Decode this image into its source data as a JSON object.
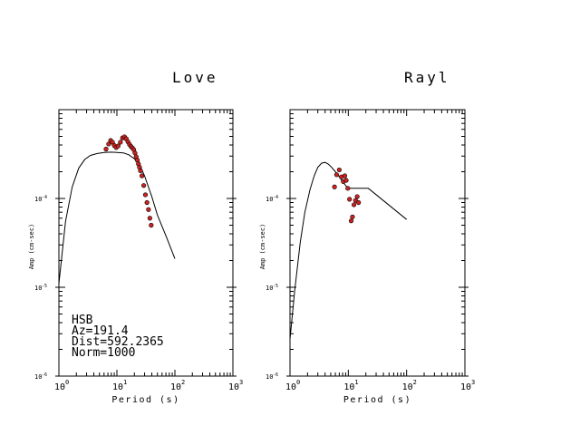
{
  "panels": [
    {
      "title": "Love",
      "xlabel": "Period (s)",
      "ylabel": "Amp (cm-sec)"
    },
    {
      "title": "Rayl",
      "xlabel": "Period (s)",
      "ylabel": "Amp (cm-sec)"
    }
  ],
  "station_info": {
    "station": "HSB",
    "az": "Az=191.4",
    "dist": "Dist=592.2365",
    "norm": "Norm=1000"
  },
  "colors": {
    "observed": "#cc2222",
    "model": "#000000",
    "axes": "#000000"
  },
  "chart_data": [
    {
      "type": "scatter",
      "title": "Love",
      "xlabel": "Period (s)",
      "ylabel": "Amp (cm-sec)",
      "xscale": "log",
      "yscale": "log",
      "xlim": [
        1,
        1000
      ],
      "ylim": [
        1e-06,
        0.001
      ],
      "x_ticks": [
        {
          "value": 1,
          "label": "10^0"
        },
        {
          "value": 10,
          "label": "10^1"
        },
        {
          "value": 100,
          "label": "10^2"
        },
        {
          "value": 1000,
          "label": "10^3"
        }
      ],
      "y_ticks": [
        {
          "value": 1e-06,
          "label": "10^-6"
        },
        {
          "value": 1e-05,
          "label": "10^-5"
        },
        {
          "value": 0.0001,
          "label": "10^-4"
        }
      ],
      "series": [
        {
          "kind": "line",
          "x": [
            1,
            1.3,
            1.7,
            2.2,
            2.8,
            3.5,
            4.5,
            6,
            8,
            10,
            13,
            16,
            20,
            25,
            30,
            40,
            50,
            70,
            100
          ],
          "y": [
            1.1e-05,
            5.5e-05,
            0.000135,
            0.00022,
            0.000275,
            0.000305,
            0.00032,
            0.00033,
            0.000332,
            0.00033,
            0.000325,
            0.00031,
            0.00028,
            0.000235,
            0.00018,
            0.000105,
            6.5e-05,
            3.8e-05,
            2.1e-05
          ]
        },
        {
          "kind": "points",
          "x": [
            6.5,
            7.2,
            7.8,
            8.4,
            9,
            9.7,
            10.5,
            11.5,
            12.5,
            13.5,
            14.5,
            15.5,
            16.5,
            17.5,
            18.5,
            19.5,
            20.5,
            21.5,
            22.5,
            23.5,
            24.5,
            25.5,
            27,
            29,
            31,
            33,
            35,
            37,
            39
          ],
          "y": [
            0.00036,
            0.00041,
            0.00045,
            0.00043,
            0.000395,
            0.000375,
            0.00039,
            0.00043,
            0.00048,
            0.000495,
            0.00047,
            0.000435,
            0.000405,
            0.000385,
            0.00037,
            0.000355,
            0.000325,
            0.000295,
            0.00027,
            0.000245,
            0.000225,
            0.000205,
            0.00018,
            0.00014,
            0.00011,
            9e-05,
            7.5e-05,
            6e-05,
            5e-05
          ]
        }
      ]
    },
    {
      "type": "scatter",
      "title": "Rayl",
      "xlabel": "Period (s)",
      "ylabel": "Amp (cm-sec)",
      "xscale": "log",
      "yscale": "log",
      "xlim": [
        1,
        1000
      ],
      "ylim": [
        1e-06,
        0.001
      ],
      "x_ticks": [
        {
          "value": 1,
          "label": "10^0"
        },
        {
          "value": 10,
          "label": "10^1"
        },
        {
          "value": 100,
          "label": "10^2"
        },
        {
          "value": 1000,
          "label": "10^3"
        }
      ],
      "y_ticks": [
        {
          "value": 1e-06,
          "label": "10^-6"
        },
        {
          "value": 1e-05,
          "label": "10^-5"
        },
        {
          "value": 0.0001,
          "label": "10^-4"
        }
      ],
      "series": [
        {
          "kind": "line",
          "x": [
            1,
            1.2,
            1.5,
            1.8,
            2.2,
            2.6,
            3,
            3.5,
            4,
            4.5,
            5,
            6,
            7,
            8,
            9,
            10,
            12,
            14,
            16,
            18,
            20,
            22,
            100
          ],
          "y": [
            2.6e-06,
            9e-06,
            3.2e-05,
            7e-05,
            0.000125,
            0.00018,
            0.000225,
            0.00025,
            0.000255,
            0.000245,
            0.00023,
            0.0002,
            0.000175,
            0.000155,
            0.00014,
            0.00013,
            0.00013,
            0.00013,
            0.00013,
            0.00013,
            0.00013,
            0.00013,
            5.8e-05
          ]
        },
        {
          "kind": "points",
          "x": [
            5.8,
            6.3,
            7,
            7.6,
            8.2,
            8.7,
            9.2,
            9.8,
            10.5,
            11.2,
            11.8,
            12.5,
            13.3,
            14.2,
            15
          ],
          "y": [
            0.000135,
            0.000185,
            0.00021,
            0.000175,
            0.000155,
            0.00018,
            0.00016,
            0.00013,
            9.8e-05,
            5.6e-05,
            6.2e-05,
            8.5e-05,
            9.5e-05,
            0.000105,
            9e-05
          ]
        }
      ]
    }
  ]
}
